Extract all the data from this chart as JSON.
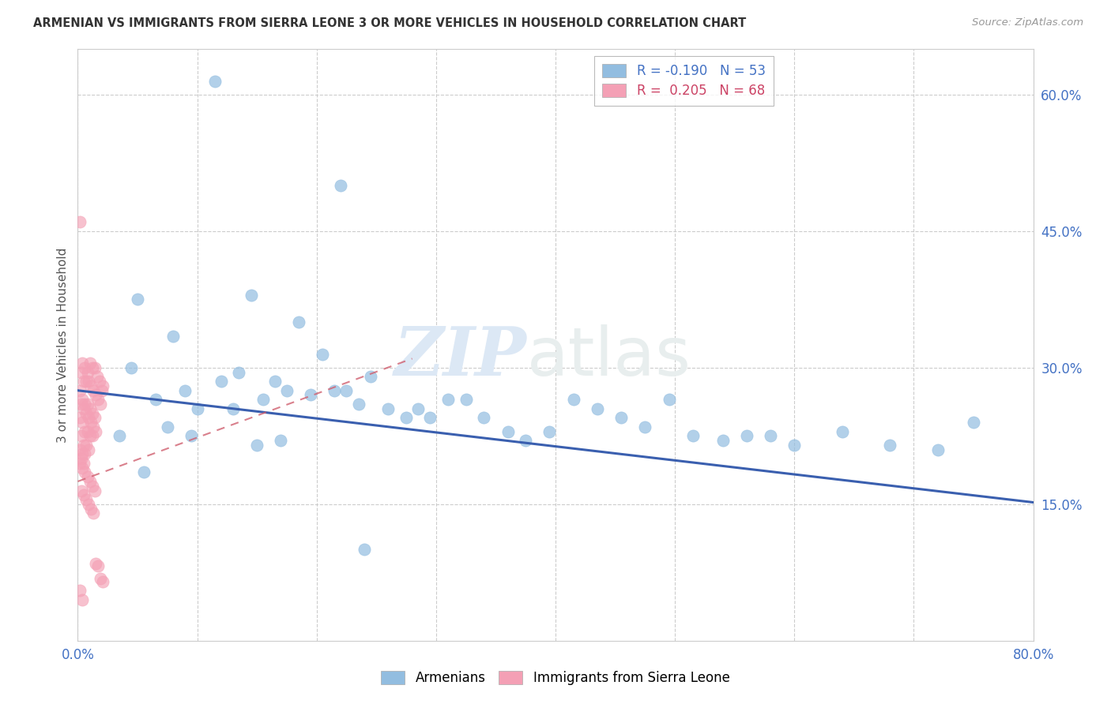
{
  "title": "ARMENIAN VS IMMIGRANTS FROM SIERRA LEONE 3 OR MORE VEHICLES IN HOUSEHOLD CORRELATION CHART",
  "source": "Source: ZipAtlas.com",
  "ylabel": "3 or more Vehicles in Household",
  "x_min": 0.0,
  "x_max": 0.8,
  "y_min": 0.0,
  "y_max": 0.65,
  "x_ticks": [
    0.0,
    0.1,
    0.2,
    0.3,
    0.4,
    0.5,
    0.6,
    0.7,
    0.8
  ],
  "y_ticks_right": [
    0.15,
    0.3,
    0.45,
    0.6
  ],
  "y_tick_labels_right": [
    "15.0%",
    "30.0%",
    "45.0%",
    "60.0%"
  ],
  "legend_r1": "R = -0.190",
  "legend_n1": "N = 53",
  "legend_r2": "R =  0.205",
  "legend_n2": "N = 68",
  "blue_color": "#92bde0",
  "pink_color": "#f4a0b5",
  "trendline_blue_color": "#3a5faf",
  "trendline_pink_color": "#d06070",
  "watermark_zip": "ZIP",
  "watermark_atlas": "atlas",
  "armenians_x": [
    0.115,
    0.22,
    0.05,
    0.08,
    0.145,
    0.185,
    0.045,
    0.065,
    0.09,
    0.1,
    0.12,
    0.135,
    0.155,
    0.165,
    0.175,
    0.195,
    0.205,
    0.215,
    0.225,
    0.235,
    0.245,
    0.26,
    0.275,
    0.285,
    0.295,
    0.31,
    0.325,
    0.34,
    0.36,
    0.375,
    0.395,
    0.415,
    0.435,
    0.455,
    0.475,
    0.495,
    0.515,
    0.54,
    0.56,
    0.58,
    0.6,
    0.64,
    0.68,
    0.72,
    0.75,
    0.035,
    0.055,
    0.075,
    0.095,
    0.13,
    0.15,
    0.17,
    0.24
  ],
  "armenians_y": [
    0.615,
    0.5,
    0.375,
    0.335,
    0.38,
    0.35,
    0.3,
    0.265,
    0.275,
    0.255,
    0.285,
    0.295,
    0.265,
    0.285,
    0.275,
    0.27,
    0.315,
    0.275,
    0.275,
    0.26,
    0.29,
    0.255,
    0.245,
    0.255,
    0.245,
    0.265,
    0.265,
    0.245,
    0.23,
    0.22,
    0.23,
    0.265,
    0.255,
    0.245,
    0.235,
    0.265,
    0.225,
    0.22,
    0.225,
    0.225,
    0.215,
    0.23,
    0.215,
    0.21,
    0.24,
    0.225,
    0.185,
    0.235,
    0.225,
    0.255,
    0.215,
    0.22,
    0.1
  ],
  "sierraleone_x": [
    0.002,
    0.004,
    0.006,
    0.008,
    0.01,
    0.012,
    0.014,
    0.016,
    0.018,
    0.02,
    0.003,
    0.005,
    0.007,
    0.009,
    0.011,
    0.013,
    0.015,
    0.017,
    0.019,
    0.021,
    0.002,
    0.004,
    0.006,
    0.008,
    0.01,
    0.012,
    0.014,
    0.003,
    0.005,
    0.007,
    0.009,
    0.011,
    0.013,
    0.015,
    0.002,
    0.004,
    0.006,
    0.008,
    0.01,
    0.012,
    0.003,
    0.005,
    0.007,
    0.009,
    0.002,
    0.004,
    0.006,
    0.003,
    0.005,
    0.002,
    0.004,
    0.006,
    0.008,
    0.01,
    0.012,
    0.014,
    0.003,
    0.005,
    0.007,
    0.009,
    0.011,
    0.013,
    0.015,
    0.017,
    0.019,
    0.021,
    0.002,
    0.004
  ],
  "sierraleone_y": [
    0.46,
    0.305,
    0.3,
    0.295,
    0.305,
    0.3,
    0.3,
    0.29,
    0.285,
    0.275,
    0.295,
    0.285,
    0.285,
    0.285,
    0.28,
    0.275,
    0.27,
    0.265,
    0.26,
    0.28,
    0.275,
    0.265,
    0.26,
    0.26,
    0.255,
    0.25,
    0.245,
    0.26,
    0.255,
    0.25,
    0.245,
    0.24,
    0.235,
    0.23,
    0.245,
    0.24,
    0.23,
    0.23,
    0.225,
    0.225,
    0.225,
    0.215,
    0.215,
    0.21,
    0.21,
    0.205,
    0.205,
    0.2,
    0.195,
    0.195,
    0.19,
    0.185,
    0.18,
    0.175,
    0.17,
    0.165,
    0.165,
    0.16,
    0.155,
    0.15,
    0.145,
    0.14,
    0.085,
    0.082,
    0.068,
    0.065,
    0.055,
    0.045
  ]
}
